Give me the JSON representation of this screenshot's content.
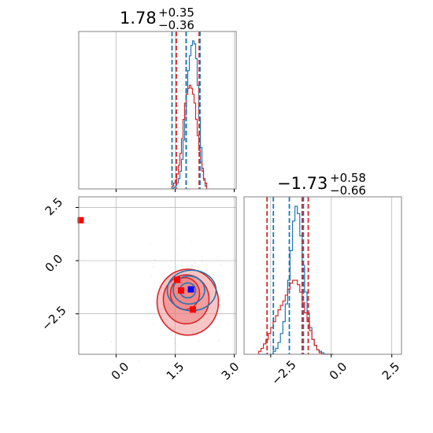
{
  "colors": {
    "blue": "#1f77b4",
    "red": "#d62728",
    "red_fill": "#f08080",
    "marker_red": "#ff0000",
    "marker_blue": "#0000ff",
    "grid": "#b0b0b0",
    "frame": "#808080"
  },
  "chart_data": [
    {
      "type": "line",
      "panel": "marginal x1",
      "title": {
        "main": "1.78",
        "plus": "+0.35",
        "minus": "−0.36"
      },
      "xlim": [
        -0.95,
        3.05
      ],
      "grid": true,
      "bins": [
        1.42,
        1.46,
        1.5,
        1.54,
        1.58,
        1.62,
        1.66,
        1.7,
        1.74,
        1.78,
        1.82,
        1.86,
        1.9,
        1.94,
        1.98,
        2.02,
        2.06,
        2.1,
        2.14,
        2.18,
        2.22,
        2.26
      ],
      "series": [
        {
          "color_key": "blue",
          "values": [
            0.0,
            0.01,
            0.02,
            0.04,
            0.07,
            0.12,
            0.2,
            0.33,
            0.5,
            0.66,
            0.8,
            0.9,
            0.97,
            1.0,
            0.98,
            0.88,
            0.7,
            0.48,
            0.28,
            0.14,
            0.06,
            0.02
          ]
        },
        {
          "color_key": "red",
          "values": [
            0.02,
            0.04,
            0.06,
            0.1,
            0.16,
            0.24,
            0.34,
            0.47,
            0.58,
            0.64,
            0.68,
            0.7,
            0.68,
            0.64,
            0.58,
            0.47,
            0.36,
            0.26,
            0.18,
            0.12,
            0.07,
            0.04
          ]
        }
      ],
      "quantile_lines": {
        "blue": [
          1.42,
          1.78,
          2.13
        ],
        "red": [
          1.53,
          1.78,
          2.11
        ]
      }
    },
    {
      "type": "line",
      "panel": "marginal x2",
      "title": {
        "main": "−1.73",
        "plus": "+0.58",
        "minus": "−0.66"
      },
      "xlim": [
        -3.6,
        2.9
      ],
      "xticks": [
        "−2.5",
        "0.0",
        "2.5"
      ],
      "grid": true,
      "bins": [
        -3.0,
        -2.9,
        -2.8,
        -2.7,
        -2.6,
        -2.5,
        -2.4,
        -2.3,
        -2.2,
        -2.1,
        -2.0,
        -1.9,
        -1.8,
        -1.7,
        -1.6,
        -1.5,
        -1.4,
        -1.3,
        -1.2,
        -1.1,
        -1.0,
        -0.9,
        -0.8,
        -0.7,
        -0.6,
        -0.5,
        -0.4,
        -0.3,
        -0.2,
        -0.1,
        0.0
      ],
      "series": [
        {
          "color_key": "blue",
          "values": [
            0.0,
            0.0,
            0.0,
            0.0,
            0.0,
            0.0,
            0.02,
            0.04,
            0.08,
            0.14,
            0.22,
            0.34,
            0.5,
            0.7,
            0.9,
            1.0,
            0.95,
            0.8,
            0.6,
            0.42,
            0.28,
            0.18,
            0.1,
            0.06,
            0.03,
            0.02,
            0.01,
            0.0,
            0.0,
            0.0,
            0.0
          ]
        },
        {
          "color_key": "red",
          "values": [
            0.02,
            0.04,
            0.07,
            0.1,
            0.14,
            0.18,
            0.22,
            0.26,
            0.3,
            0.33,
            0.36,
            0.4,
            0.44,
            0.48,
            0.5,
            0.5,
            0.47,
            0.42,
            0.35,
            0.28,
            0.22,
            0.16,
            0.1,
            0.06,
            0.03,
            0.01,
            0.0,
            0.0,
            0.0,
            0.0,
            0.0
          ]
        }
      ],
      "quantile_lines": {
        "blue": [
          -2.39,
          -1.73,
          -1.15
        ],
        "red": [
          -2.65,
          -1.2,
          -0.95
        ]
      }
    },
    {
      "type": "scatter",
      "panel": "joint x1 vs x2",
      "xlim": [
        -0.95,
        3.05
      ],
      "ylim": [
        -4.4,
        3.0
      ],
      "xticks": [
        "0.0",
        "1.5",
        "3.0"
      ],
      "yticks": [
        "2.5",
        "0.0",
        "−2.5"
      ],
      "grid": true,
      "contours": {
        "red": [
          {
            "cx": 1.82,
            "cy": -1.95,
            "rx": 0.78,
            "ry": 1.55
          },
          {
            "cx": 1.78,
            "cy": -1.82,
            "rx": 0.58,
            "ry": 1.15
          },
          {
            "cx": 1.75,
            "cy": -1.55,
            "rx": 0.37,
            "ry": 0.75
          }
        ],
        "blue": [
          {
            "cx": 1.92,
            "cy": -1.4,
            "rx": 0.62,
            "ry": 0.95
          },
          {
            "cx": 1.85,
            "cy": -1.38,
            "rx": 0.4,
            "ry": 0.66
          },
          {
            "cx": 1.82,
            "cy": -1.4,
            "rx": 0.2,
            "ry": 0.35
          }
        ]
      },
      "markers": [
        {
          "color_key": "marker_red",
          "x": -0.9,
          "y": 1.9
        },
        {
          "color_key": "marker_red",
          "x": 1.55,
          "y": -0.9
        },
        {
          "color_key": "marker_red",
          "x": 1.65,
          "y": -1.4
        },
        {
          "color_key": "marker_red",
          "x": 1.95,
          "y": -2.3
        },
        {
          "color_key": "marker_blue",
          "x": 1.9,
          "y": -1.35
        }
      ]
    }
  ]
}
